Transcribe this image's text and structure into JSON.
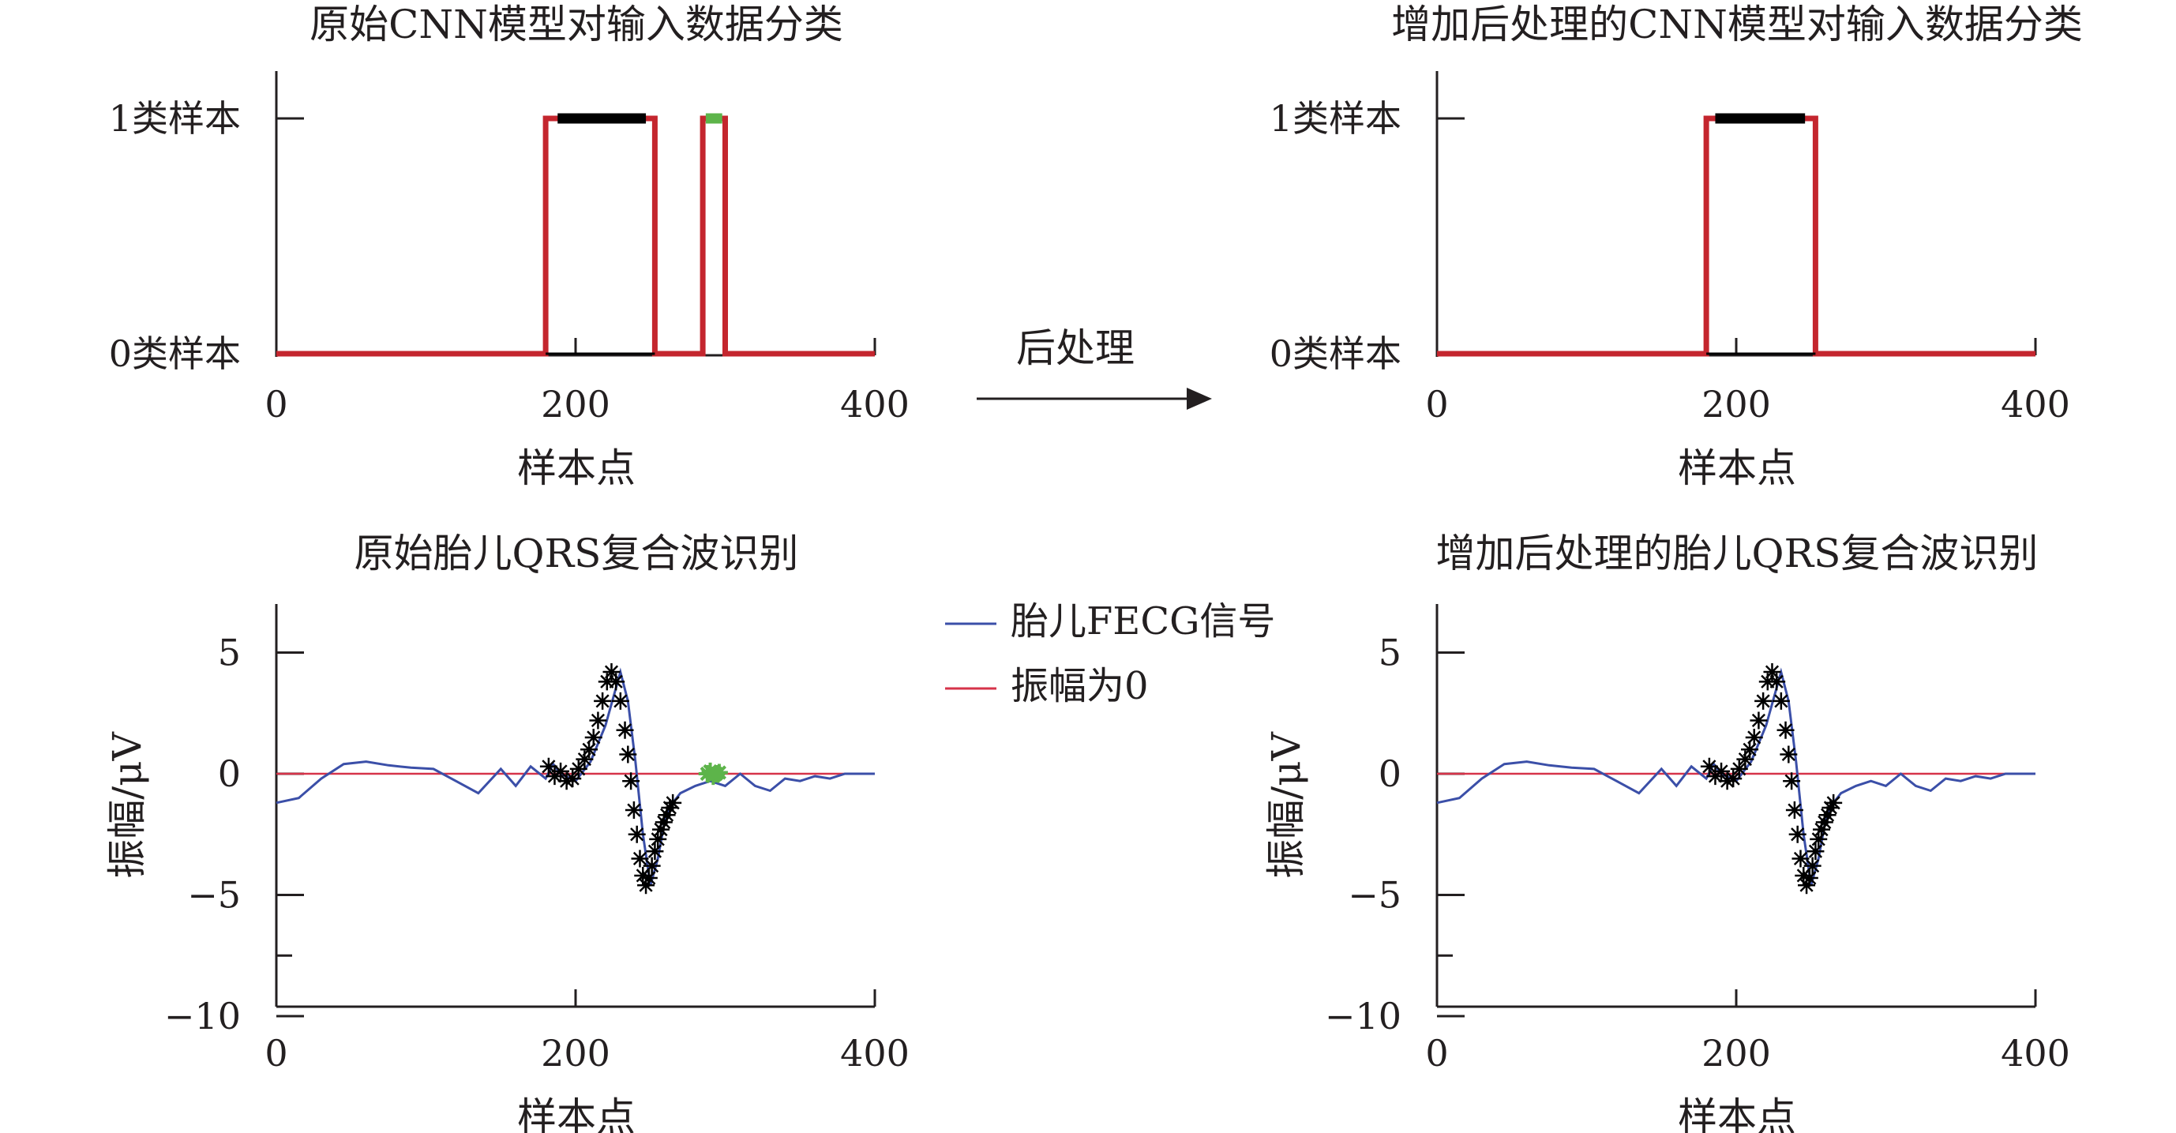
{
  "center": {
    "arrow_label": "后处理"
  },
  "legend": {
    "items": [
      {
        "label": "胎儿FECG信号",
        "color": "#3b4fa8"
      },
      {
        "label": "振幅为0",
        "color": "#d6334a"
      }
    ]
  },
  "chart_data": [
    {
      "id": "tl",
      "type": "line",
      "title": "原始CNN模型对输入数据分类",
      "xlabel": "样本点",
      "ylabel": "",
      "xlim": [
        0,
        400
      ],
      "ylim": [
        0,
        1
      ],
      "xticks": [
        "0",
        "200",
        "400"
      ],
      "yticks": [
        {
          "value": 0,
          "label": "0类样本"
        },
        {
          "value": 1,
          "label": "1类样本"
        }
      ],
      "series": [
        {
          "name": "",
          "color": "#c4262e",
          "x": [
            0,
            180,
            180,
            253,
            253,
            285,
            285,
            300,
            300,
            400
          ],
          "y": [
            0,
            0,
            1,
            1,
            0,
            0,
            1,
            1,
            0,
            0
          ]
        },
        {
          "name": "",
          "color": "#000000",
          "x": [
            180,
            253
          ],
          "y": [
            0,
            0
          ]
        }
      ],
      "highlights": [
        {
          "color": "#000000",
          "x": [
            188,
            247
          ],
          "y": 1
        },
        {
          "color": "#5db44a",
          "x": [
            287,
            298
          ],
          "y": 1
        }
      ]
    },
    {
      "id": "tr",
      "type": "line",
      "title": "增加后处理的CNN模型对输入数据分类",
      "xlabel": "样本点",
      "ylabel": "",
      "xlim": [
        0,
        400
      ],
      "ylim": [
        0,
        1
      ],
      "xticks": [
        "0",
        "200",
        "400"
      ],
      "yticks": [
        {
          "value": 0,
          "label": "0类样本"
        },
        {
          "value": 1,
          "label": "1类样本"
        }
      ],
      "series": [
        {
          "name": "",
          "color": "#c4262e",
          "x": [
            0,
            180,
            180,
            253,
            253,
            400
          ],
          "y": [
            0,
            0,
            1,
            1,
            0,
            0
          ]
        },
        {
          "name": "",
          "color": "#000000",
          "x": [
            180,
            253
          ],
          "y": [
            0,
            0
          ]
        }
      ],
      "highlights": [
        {
          "color": "#000000",
          "x": [
            186,
            246
          ],
          "y": 1
        }
      ]
    },
    {
      "id": "bl",
      "type": "line",
      "title": "原始胎儿QRS复合波识别",
      "xlabel": "样本点",
      "ylabel": "振幅/μV",
      "xlim": [
        0,
        400
      ],
      "ylim": [
        -10,
        7
      ],
      "xticks": [
        "0",
        "200",
        "400"
      ],
      "yticks": [
        {
          "value": 5,
          "label": "5"
        },
        {
          "value": 0,
          "label": "0"
        },
        {
          "value": -5,
          "label": "−5"
        },
        {
          "value": -10,
          "label": "−10"
        }
      ],
      "series": [
        {
          "name": "胎儿FECG信号",
          "color": "#3b4fa8",
          "x": [
            0,
            15,
            30,
            45,
            60,
            75,
            90,
            105,
            120,
            135,
            150,
            160,
            170,
            180,
            185,
            190,
            200,
            210,
            220,
            230,
            235,
            240,
            245,
            250,
            255,
            260,
            265,
            270,
            280,
            290,
            300,
            310,
            320,
            330,
            340,
            350,
            360,
            370,
            380,
            390,
            400
          ],
          "y": [
            -1.2,
            -1.0,
            -0.2,
            0.4,
            0.5,
            0.35,
            0.25,
            0.2,
            -0.3,
            -0.8,
            0.2,
            -0.5,
            0.3,
            -0.2,
            0.4,
            0.0,
            -0.3,
            0.5,
            2.0,
            4.2,
            3.0,
            0.5,
            -2.5,
            -4.6,
            -3.5,
            -1.8,
            -1.2,
            -0.8,
            -0.5,
            -0.3,
            -0.5,
            0.0,
            -0.5,
            -0.7,
            -0.2,
            -0.3,
            -0.1,
            -0.2,
            0.0,
            0.0,
            0.0
          ]
        },
        {
          "name": "振幅为0",
          "color": "#d6334a",
          "x": [
            0,
            400
          ],
          "y": [
            0,
            0
          ]
        }
      ],
      "markers": [
        {
          "color": "#000000",
          "x": [
            182,
            186,
            190,
            194,
            198,
            202,
            206,
            209,
            212,
            215,
            218,
            221,
            224,
            227,
            230,
            233,
            235,
            237,
            239,
            241,
            243,
            245,
            247,
            249,
            251,
            253,
            255,
            257,
            259,
            261,
            263,
            265
          ],
          "y": [
            0.3,
            -0.1,
            0.1,
            -0.3,
            -0.2,
            0.2,
            0.6,
            1.0,
            1.5,
            2.2,
            3.0,
            3.8,
            4.2,
            3.8,
            3.0,
            1.8,
            0.8,
            -0.3,
            -1.5,
            -2.5,
            -3.5,
            -4.2,
            -4.6,
            -4.3,
            -3.8,
            -3.2,
            -2.7,
            -2.3,
            -2.0,
            -1.7,
            -1.4,
            -1.2
          ]
        },
        {
          "color": "#5db44a",
          "x": [
            288,
            290,
            292,
            294,
            296
          ],
          "y": [
            0.0,
            0.1,
            -0.1,
            0.0,
            0.05
          ]
        }
      ]
    },
    {
      "id": "br",
      "type": "line",
      "title": "增加后处理的胎儿QRS复合波识别",
      "xlabel": "样本点",
      "ylabel": "振幅/μV",
      "xlim": [
        0,
        400
      ],
      "ylim": [
        -10,
        7
      ],
      "xticks": [
        "0",
        "200",
        "400"
      ],
      "yticks": [
        {
          "value": 5,
          "label": "5"
        },
        {
          "value": 0,
          "label": "0"
        },
        {
          "value": -5,
          "label": "−5"
        },
        {
          "value": -10,
          "label": "−10"
        }
      ],
      "series": [
        {
          "name": "胎儿FECG信号",
          "color": "#3b4fa8",
          "x": [
            0,
            15,
            30,
            45,
            60,
            75,
            90,
            105,
            120,
            135,
            150,
            160,
            170,
            180,
            185,
            190,
            200,
            210,
            220,
            230,
            235,
            240,
            245,
            250,
            255,
            260,
            265,
            270,
            280,
            290,
            300,
            310,
            320,
            330,
            340,
            350,
            360,
            370,
            380,
            390,
            400
          ],
          "y": [
            -1.2,
            -1.0,
            -0.2,
            0.4,
            0.5,
            0.35,
            0.25,
            0.2,
            -0.3,
            -0.8,
            0.2,
            -0.5,
            0.3,
            -0.2,
            0.4,
            0.0,
            -0.3,
            0.5,
            2.0,
            4.2,
            3.0,
            0.5,
            -2.5,
            -4.6,
            -3.5,
            -1.8,
            -1.2,
            -0.8,
            -0.5,
            -0.3,
            -0.5,
            0.0,
            -0.5,
            -0.7,
            -0.2,
            -0.3,
            -0.1,
            -0.2,
            0.0,
            0.0,
            0.0
          ]
        },
        {
          "name": "振幅为0",
          "color": "#d6334a",
          "x": [
            0,
            400
          ],
          "y": [
            0,
            0
          ]
        }
      ],
      "markers": [
        {
          "color": "#000000",
          "x": [
            182,
            186,
            190,
            194,
            198,
            202,
            206,
            209,
            212,
            215,
            218,
            221,
            224,
            227,
            230,
            233,
            235,
            237,
            239,
            241,
            243,
            245,
            247,
            249,
            251,
            253,
            255,
            257,
            259,
            261,
            263,
            265
          ],
          "y": [
            0.3,
            -0.1,
            0.1,
            -0.3,
            -0.2,
            0.2,
            0.6,
            1.0,
            1.5,
            2.2,
            3.0,
            3.8,
            4.2,
            3.8,
            3.0,
            1.8,
            0.8,
            -0.3,
            -1.5,
            -2.5,
            -3.5,
            -4.2,
            -4.6,
            -4.3,
            -3.8,
            -3.2,
            -2.7,
            -2.3,
            -2.0,
            -1.7,
            -1.4,
            -1.2
          ]
        }
      ]
    }
  ]
}
